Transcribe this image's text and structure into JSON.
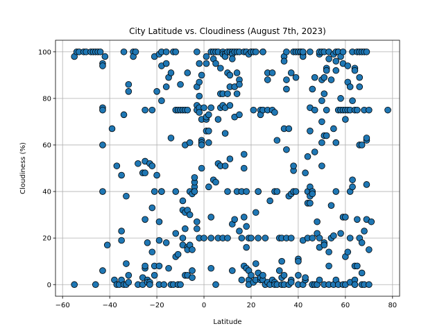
{
  "chart_data": {
    "type": "scatter",
    "title": "City Latitude vs. Cloudiness (August 7th, 2023)",
    "xlabel": "Latitude",
    "ylabel": "Cloudiness (%)",
    "xlim": [
      -63,
      83
    ],
    "ylim": [
      -5,
      105
    ],
    "xticks": [
      -60,
      -40,
      -20,
      0,
      20,
      40,
      60,
      80
    ],
    "yticks": [
      0,
      20,
      40,
      60,
      80,
      100
    ],
    "grid": true,
    "marker_color": "#1f77b4",
    "marker_edge_color": "#000000",
    "points": [
      [
        -55,
        98
      ],
      [
        -54,
        100
      ],
      [
        -53,
        100
      ],
      [
        -51,
        100
      ],
      [
        -50,
        100
      ],
      [
        -48,
        100
      ],
      [
        -47,
        100
      ],
      [
        -46,
        100
      ],
      [
        -45,
        100
      ],
      [
        -44,
        100
      ],
      [
        -43,
        95
      ],
      [
        -43,
        94
      ],
      [
        -42,
        98
      ],
      [
        -43,
        76
      ],
      [
        -43,
        75
      ],
      [
        -43,
        60
      ],
      [
        -43,
        40
      ],
      [
        -43,
        6
      ],
      [
        -41,
        17
      ],
      [
        -39,
        67
      ],
      [
        -55,
        0
      ],
      [
        -46,
        0
      ],
      [
        -38,
        2
      ],
      [
        -37,
        51
      ],
      [
        -37,
        0
      ],
      [
        -36,
        0
      ],
      [
        -35,
        19
      ],
      [
        -35,
        23
      ],
      [
        -35,
        47
      ],
      [
        -35,
        2
      ],
      [
        -34,
        0
      ],
      [
        -34,
        73
      ],
      [
        -34,
        100
      ],
      [
        -33,
        38
      ],
      [
        -33,
        9
      ],
      [
        -33,
        0
      ],
      [
        -32,
        1
      ],
      [
        -32,
        4
      ],
      [
        -32,
        86
      ],
      [
        -32,
        83
      ],
      [
        -30,
        100
      ],
      [
        -30,
        98
      ],
      [
        -29,
        100
      ],
      [
        -28,
        52
      ],
      [
        -28,
        0
      ],
      [
        -26,
        0
      ],
      [
        -26,
        3
      ],
      [
        -26,
        48
      ],
      [
        -25,
        28
      ],
      [
        -25,
        7
      ],
      [
        -25,
        8
      ],
      [
        -25,
        48
      ],
      [
        -25,
        53
      ],
      [
        -25,
        75
      ],
      [
        -24,
        2
      ],
      [
        -24,
        1
      ],
      [
        -24,
        18
      ],
      [
        -23,
        1
      ],
      [
        -23,
        52
      ],
      [
        -23,
        0
      ],
      [
        -22,
        51
      ],
      [
        -22,
        75
      ],
      [
        -22,
        33
      ],
      [
        -22,
        14
      ],
      [
        -21,
        4
      ],
      [
        -21,
        8
      ],
      [
        -21,
        40
      ],
      [
        -21,
        98
      ],
      [
        -20,
        83
      ],
      [
        -20,
        47
      ],
      [
        -19,
        99
      ],
      [
        -19,
        8
      ],
      [
        -19,
        0
      ],
      [
        -19,
        19
      ],
      [
        -19,
        27
      ],
      [
        -18,
        40
      ],
      [
        -18,
        40
      ],
      [
        -18,
        79
      ],
      [
        -18,
        94
      ],
      [
        -18,
        100
      ],
      [
        -17,
        0
      ],
      [
        -16,
        85
      ],
      [
        -16,
        95
      ],
      [
        -16,
        18
      ],
      [
        -16,
        100
      ],
      [
        -15,
        89
      ],
      [
        -15,
        7
      ],
      [
        -14,
        91
      ],
      [
        -14,
        63
      ],
      [
        -14,
        0
      ],
      [
        -13,
        0
      ],
      [
        -13,
        100
      ],
      [
        -12,
        100
      ],
      [
        -12,
        75
      ],
      [
        -12,
        40
      ],
      [
        -12,
        22
      ],
      [
        -12,
        12
      ],
      [
        -11,
        75
      ],
      [
        -11,
        0
      ],
      [
        -11,
        13
      ],
      [
        -10,
        0
      ],
      [
        -10,
        86
      ],
      [
        -10,
        75
      ],
      [
        -9,
        75
      ],
      [
        -9,
        32
      ],
      [
        -9,
        17
      ],
      [
        -9,
        20
      ],
      [
        -9,
        36
      ],
      [
        -8,
        31
      ],
      [
        -8,
        75
      ],
      [
        -8,
        60
      ],
      [
        -8,
        4
      ],
      [
        -8,
        24
      ],
      [
        -7,
        4
      ],
      [
        -7,
        91
      ],
      [
        -7,
        75
      ],
      [
        -7,
        16
      ],
      [
        -7,
        15
      ],
      [
        -7,
        32
      ],
      [
        -6,
        61
      ],
      [
        -6,
        40
      ],
      [
        -6,
        30
      ],
      [
        -6,
        17
      ],
      [
        -5,
        6
      ],
      [
        -5,
        15
      ],
      [
        -5,
        39
      ],
      [
        -5,
        3
      ],
      [
        -4,
        42
      ],
      [
        -4,
        44
      ],
      [
        -4,
        40
      ],
      [
        -4,
        46
      ],
      [
        -3,
        85
      ],
      [
        -3,
        100
      ],
      [
        -3,
        77
      ],
      [
        -3,
        75
      ],
      [
        -3,
        27
      ],
      [
        -3,
        24
      ],
      [
        -2,
        20
      ],
      [
        -2,
        76
      ],
      [
        -2,
        74
      ],
      [
        -2,
        87
      ],
      [
        -2,
        81
      ],
      [
        -2,
        95
      ],
      [
        -1,
        71
      ],
      [
        -1,
        62
      ],
      [
        -1,
        61
      ],
      [
        -1,
        60
      ],
      [
        -1,
        50
      ],
      [
        -1,
        90
      ],
      [
        0,
        20
      ],
      [
        0,
        76
      ],
      [
        1,
        71
      ],
      [
        1,
        66
      ],
      [
        1,
        72
      ],
      [
        1,
        95
      ],
      [
        1,
        98
      ],
      [
        2,
        61
      ],
      [
        2,
        73
      ],
      [
        2,
        42
      ],
      [
        2,
        66
      ],
      [
        3,
        7
      ],
      [
        3,
        100
      ],
      [
        3,
        76
      ],
      [
        3,
        29
      ],
      [
        3,
        20
      ],
      [
        4,
        45
      ],
      [
        4,
        100
      ],
      [
        4,
        97
      ],
      [
        5,
        0
      ],
      [
        5,
        44
      ],
      [
        5,
        95
      ],
      [
        5,
        100
      ],
      [
        6,
        100
      ],
      [
        6,
        71
      ],
      [
        6,
        52
      ],
      [
        6,
        20
      ],
      [
        7,
        82
      ],
      [
        7,
        76
      ],
      [
        7,
        93
      ],
      [
        7,
        51
      ],
      [
        8,
        100
      ],
      [
        8,
        20
      ],
      [
        8,
        82
      ],
      [
        8,
        77
      ],
      [
        8,
        99
      ],
      [
        9,
        99
      ],
      [
        9,
        98
      ],
      [
        9,
        51
      ],
      [
        9,
        65
      ],
      [
        9,
        76
      ],
      [
        10,
        91
      ],
      [
        10,
        100
      ],
      [
        10,
        82
      ],
      [
        10,
        40
      ],
      [
        10,
        20
      ],
      [
        11,
        54
      ],
      [
        11,
        77
      ],
      [
        11,
        90
      ],
      [
        11,
        85
      ],
      [
        11,
        100
      ],
      [
        12,
        100
      ],
      [
        12,
        99
      ],
      [
        12,
        26
      ],
      [
        12,
        6
      ],
      [
        12,
        97
      ],
      [
        13,
        100
      ],
      [
        13,
        28
      ],
      [
        13,
        85
      ],
      [
        13,
        72
      ],
      [
        14,
        82
      ],
      [
        14,
        91
      ],
      [
        14,
        40
      ],
      [
        14,
        100
      ],
      [
        15,
        88
      ],
      [
        15,
        86
      ],
      [
        15,
        100
      ],
      [
        15,
        73
      ],
      [
        15,
        23
      ],
      [
        16,
        2
      ],
      [
        16,
        20
      ],
      [
        16,
        40
      ],
      [
        17,
        56
      ],
      [
        17,
        8
      ],
      [
        17,
        50
      ],
      [
        17,
        100
      ],
      [
        17,
        29
      ],
      [
        18,
        7
      ],
      [
        18,
        16
      ],
      [
        18,
        25
      ],
      [
        18,
        40
      ],
      [
        18,
        100
      ],
      [
        19,
        99
      ],
      [
        19,
        6
      ],
      [
        19,
        2
      ],
      [
        19,
        0
      ],
      [
        19,
        20
      ],
      [
        20,
        4
      ],
      [
        20,
        100
      ],
      [
        20,
        100
      ],
      [
        20,
        20
      ],
      [
        21,
        1
      ],
      [
        21,
        75
      ],
      [
        21,
        100
      ],
      [
        22,
        31
      ],
      [
        22,
        100
      ],
      [
        22,
        2
      ],
      [
        22,
        9
      ],
      [
        23,
        5
      ],
      [
        23,
        20
      ],
      [
        23,
        40
      ],
      [
        23,
        40
      ],
      [
        24,
        2
      ],
      [
        24,
        75
      ],
      [
        24,
        3
      ],
      [
        24,
        73
      ],
      [
        25,
        100
      ],
      [
        25,
        2
      ],
      [
        25,
        4
      ],
      [
        25,
        100
      ],
      [
        25,
        75
      ],
      [
        26,
        20
      ],
      [
        26,
        0
      ],
      [
        27,
        75
      ],
      [
        27,
        1
      ],
      [
        27,
        91
      ],
      [
        27,
        88
      ],
      [
        28,
        36
      ],
      [
        28,
        0
      ],
      [
        29,
        75
      ],
      [
        29,
        2
      ],
      [
        29,
        91
      ],
      [
        30,
        1
      ],
      [
        30,
        74
      ],
      [
        30,
        40
      ],
      [
        30,
        0
      ],
      [
        31,
        40
      ],
      [
        31,
        62
      ],
      [
        31,
        0
      ],
      [
        32,
        6
      ],
      [
        32,
        20
      ],
      [
        33,
        10
      ],
      [
        33,
        3
      ],
      [
        33,
        0
      ],
      [
        33,
        20
      ],
      [
        34,
        98
      ],
      [
        34,
        96
      ],
      [
        34,
        67
      ],
      [
        34,
        0
      ],
      [
        34,
        4
      ],
      [
        35,
        20
      ],
      [
        35,
        88
      ],
      [
        35,
        84
      ],
      [
        35,
        58
      ],
      [
        35,
        100
      ],
      [
        36,
        0
      ],
      [
        36,
        67
      ],
      [
        36,
        38
      ],
      [
        37,
        20
      ],
      [
        37,
        2
      ],
      [
        37,
        91
      ],
      [
        37,
        1
      ],
      [
        37,
        39
      ],
      [
        38,
        49
      ],
      [
        38,
        51
      ],
      [
        38,
        100
      ],
      [
        38,
        40
      ],
      [
        39,
        40
      ],
      [
        39,
        89
      ],
      [
        39,
        100
      ],
      [
        40,
        100
      ],
      [
        40,
        0
      ],
      [
        40,
        11
      ],
      [
        40,
        10
      ],
      [
        40,
        4
      ],
      [
        41,
        100
      ],
      [
        41,
        100
      ],
      [
        41,
        100
      ],
      [
        42,
        99
      ],
      [
        42,
        98
      ],
      [
        42,
        100
      ],
      [
        42,
        0
      ],
      [
        42,
        19
      ],
      [
        43,
        48
      ],
      [
        43,
        2
      ],
      [
        43,
        2
      ],
      [
        43,
        3
      ],
      [
        44,
        40
      ],
      [
        44,
        20
      ],
      [
        44,
        35
      ],
      [
        44,
        55
      ],
      [
        45,
        100
      ],
      [
        45,
        35
      ],
      [
        45,
        38
      ],
      [
        45,
        42
      ],
      [
        45,
        76
      ],
      [
        45,
        66
      ],
      [
        46,
        0
      ],
      [
        46,
        40
      ],
      [
        46,
        39
      ],
      [
        46,
        84
      ],
      [
        46,
        20
      ],
      [
        46,
        0
      ],
      [
        47,
        89
      ],
      [
        47,
        75
      ],
      [
        47,
        57
      ],
      [
        47,
        0
      ],
      [
        48,
        0
      ],
      [
        48,
        27
      ],
      [
        48,
        22
      ],
      [
        48,
        0
      ],
      [
        49,
        99
      ],
      [
        49,
        100
      ],
      [
        49,
        20
      ],
      [
        49,
        16
      ],
      [
        49,
        2
      ],
      [
        50,
        100
      ],
      [
        50,
        51
      ],
      [
        50,
        61
      ],
      [
        50,
        70
      ],
      [
        50,
        88
      ],
      [
        50,
        79
      ],
      [
        51,
        100
      ],
      [
        51,
        18
      ],
      [
        51,
        0
      ],
      [
        51,
        89
      ],
      [
        51,
        64
      ],
      [
        51,
        82
      ],
      [
        51,
        17
      ],
      [
        52,
        75
      ],
      [
        52,
        93
      ],
      [
        52,
        64
      ],
      [
        52,
        92
      ],
      [
        53,
        97
      ],
      [
        53,
        0
      ],
      [
        53,
        8
      ],
      [
        53,
        100
      ],
      [
        53,
        14
      ],
      [
        54,
        88
      ],
      [
        54,
        34
      ],
      [
        54,
        20
      ],
      [
        55,
        67
      ],
      [
        55,
        0
      ],
      [
        55,
        99
      ],
      [
        55,
        21
      ],
      [
        56,
        100
      ],
      [
        56,
        96
      ],
      [
        56,
        92
      ],
      [
        56,
        2
      ],
      [
        56,
        40
      ],
      [
        56,
        61
      ],
      [
        57,
        100
      ],
      [
        57,
        75
      ],
      [
        57,
        0
      ],
      [
        57,
        100
      ],
      [
        58,
        75
      ],
      [
        58,
        98
      ],
      [
        58,
        80
      ],
      [
        58,
        22
      ],
      [
        59,
        100
      ],
      [
        59,
        29
      ],
      [
        59,
        95
      ],
      [
        59,
        75
      ],
      [
        59,
        0
      ],
      [
        60,
        12
      ],
      [
        60,
        0
      ],
      [
        60,
        71
      ],
      [
        60,
        75
      ],
      [
        60,
        29
      ],
      [
        61,
        87
      ],
      [
        61,
        94
      ],
      [
        61,
        14
      ],
      [
        61,
        75
      ],
      [
        62,
        75
      ],
      [
        62,
        40
      ],
      [
        62,
        20
      ],
      [
        62,
        1
      ],
      [
        62,
        85
      ],
      [
        63,
        100
      ],
      [
        63,
        45
      ],
      [
        63,
        42
      ],
      [
        63,
        79
      ],
      [
        64,
        0
      ],
      [
        64,
        8
      ],
      [
        64,
        75
      ],
      [
        64,
        93
      ],
      [
        64,
        2
      ],
      [
        64,
        92
      ],
      [
        64,
        0
      ],
      [
        65,
        100
      ],
      [
        65,
        75
      ],
      [
        65,
        8
      ],
      [
        65,
        28
      ],
      [
        66,
        85
      ],
      [
        66,
        60
      ],
      [
        66,
        89
      ],
      [
        66,
        100
      ],
      [
        66,
        20
      ],
      [
        67,
        18
      ],
      [
        67,
        60
      ],
      [
        67,
        0
      ],
      [
        67,
        5
      ],
      [
        67,
        100
      ],
      [
        68,
        100
      ],
      [
        68,
        23
      ],
      [
        68,
        75
      ],
      [
        68,
        0
      ],
      [
        69,
        62
      ],
      [
        69,
        63
      ],
      [
        69,
        28
      ],
      [
        69,
        43
      ],
      [
        69,
        100
      ],
      [
        70,
        0
      ],
      [
        70,
        75
      ],
      [
        70,
        15
      ],
      [
        71,
        27
      ],
      [
        78,
        75
      ]
    ]
  }
}
